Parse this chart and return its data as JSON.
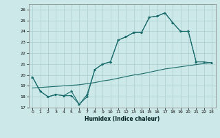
{
  "xlabel": "Humidex (Indice chaleur)",
  "xlim": [
    -0.5,
    23.5
  ],
  "ylim": [
    17,
    26.5
  ],
  "yticks": [
    17,
    18,
    19,
    20,
    21,
    22,
    23,
    24,
    25,
    26
  ],
  "xticks": [
    0,
    1,
    2,
    3,
    4,
    5,
    6,
    7,
    8,
    9,
    10,
    11,
    12,
    13,
    14,
    15,
    16,
    17,
    18,
    19,
    20,
    21,
    22,
    23
  ],
  "bg_color": "#cce8e8",
  "grid_color": "#aacece",
  "line_color": "#1a6b6b",
  "line1_x": [
    0,
    1,
    2,
    3,
    4,
    5,
    6,
    7,
    8,
    9,
    10,
    11,
    12,
    13,
    14,
    15,
    16,
    17,
    18,
    19,
    20,
    21
  ],
  "line1_y": [
    19.8,
    18.5,
    18.0,
    18.2,
    18.1,
    18.5,
    17.3,
    18.0,
    20.5,
    21.0,
    21.2,
    23.2,
    23.5,
    23.9,
    23.9,
    25.3,
    25.4,
    25.7,
    24.8,
    24.0,
    24.0,
    21.2
  ],
  "line2_x": [
    0,
    1,
    2,
    3,
    4,
    5,
    6,
    7,
    8,
    9,
    10,
    11,
    12,
    13,
    14,
    15,
    16,
    17,
    18,
    19,
    20,
    21,
    22,
    23
  ],
  "line2_y": [
    19.8,
    18.5,
    18.0,
    18.2,
    18.1,
    18.1,
    17.3,
    18.2,
    20.5,
    21.0,
    21.2,
    23.2,
    23.5,
    23.9,
    23.9,
    25.3,
    25.4,
    25.7,
    24.8,
    24.0,
    24.0,
    21.2,
    21.2,
    21.1
  ],
  "line3_x": [
    0,
    1,
    2,
    3,
    4,
    5,
    6,
    7,
    8,
    9,
    10,
    11,
    12,
    13,
    14,
    15,
    16,
    17,
    18,
    19,
    20,
    21,
    22,
    23
  ],
  "line3_y": [
    18.8,
    18.85,
    18.9,
    18.95,
    19.0,
    19.05,
    19.1,
    19.2,
    19.3,
    19.45,
    19.55,
    19.7,
    19.85,
    20.0,
    20.1,
    20.25,
    20.4,
    20.55,
    20.65,
    20.75,
    20.85,
    20.95,
    21.05,
    21.15
  ]
}
